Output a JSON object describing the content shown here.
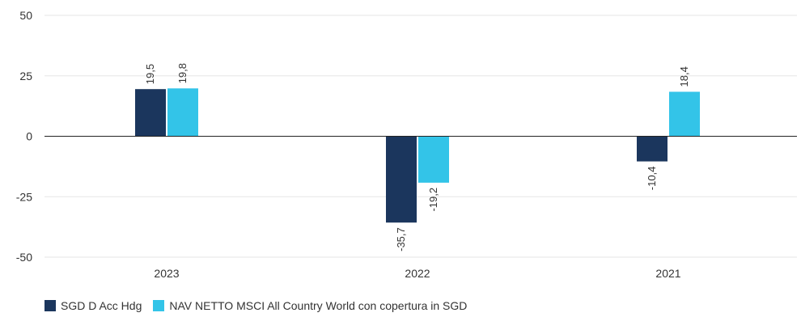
{
  "chart_data": {
    "type": "bar",
    "categories": [
      "2023",
      "2022",
      "2021"
    ],
    "series": [
      {
        "name": "SGD D Acc Hdg",
        "values": [
          19.5,
          -35.7,
          -10.4
        ],
        "labels": [
          "19,5",
          "-35,7",
          "-10,4"
        ],
        "color": "#1b365d"
      },
      {
        "name": "NAV NETTO MSCI All Country World con copertura in SGD",
        "values": [
          19.8,
          -19.2,
          18.4
        ],
        "labels": [
          "19,8",
          "-19,2",
          "18,4"
        ],
        "color": "#33c4e8"
      }
    ],
    "ylim": [
      -50,
      50
    ],
    "yticks": [
      50,
      25,
      0,
      -25,
      -50
    ],
    "ytick_labels": [
      "50",
      "25",
      "0",
      "-25",
      "-50"
    ],
    "title": "",
    "xlabel": "",
    "ylabel": "",
    "grid": true,
    "legend_position": "bottom-left"
  }
}
